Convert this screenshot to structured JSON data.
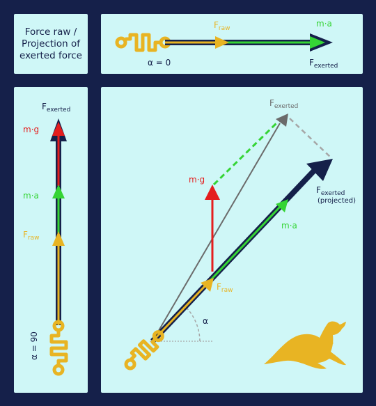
{
  "title_panel": {
    "line1": "Force raw /",
    "line2": "Projection of",
    "line3": "exerted force"
  },
  "horizontal_panel": {
    "f_raw_base": "F",
    "f_raw_sub": "raw",
    "ma_label": "m·a",
    "f_exerted_base": "F",
    "f_exerted_sub": "exerted",
    "alpha_label": "α = 0"
  },
  "vertical_panel": {
    "f_exerted_base": "F",
    "f_exerted_sub": "exerted",
    "mg_label": "m·g",
    "ma_label": "m·a",
    "f_raw_base": "F",
    "f_raw_sub": "raw",
    "alpha_label": "α = 90"
  },
  "angled_panel": {
    "f_exerted_top_base": "F",
    "f_exerted_top_sub": "exerted",
    "mg_label": "m·g",
    "f_exerted_proj_base": "F",
    "f_exerted_proj_sub": "exerted",
    "projected_label": "(projected)",
    "ma_label": "m·a",
    "f_raw_base": "F",
    "f_raw_sub": "raw",
    "alpha_symbol": "α"
  },
  "colors": {
    "background": "#15204a",
    "panel": "#cff7f7",
    "navy": "#15204a",
    "gold": "#e8b423",
    "green": "#35d435",
    "red": "#e41e1e",
    "gray": "#6b6b6b",
    "dashed_gray": "#a6a6a6"
  },
  "icons": [
    "spring-icon",
    "kangaroo-icon"
  ]
}
